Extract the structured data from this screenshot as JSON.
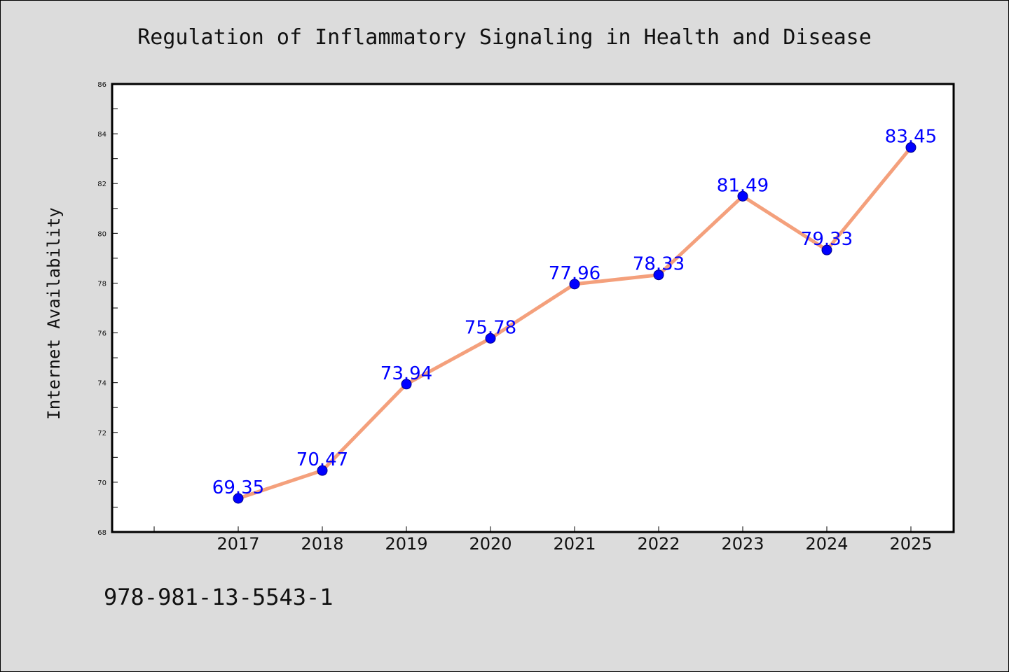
{
  "chart_data": {
    "type": "line",
    "title": "Regulation of Inflammatory Signaling in Health and Disease",
    "xlabel": "",
    "ylabel": "Internet Availability",
    "categories": [
      "2017",
      "2018",
      "2019",
      "2020",
      "2021",
      "2022",
      "2023",
      "2024",
      "2025"
    ],
    "values": [
      69.35,
      70.47,
      73.94,
      75.78,
      77.96,
      78.33,
      81.49,
      79.33,
      83.45
    ],
    "data_labels": [
      "69.35",
      "70.47",
      "73.94",
      "75.78",
      "77.96",
      "78.33",
      "81.49",
      "79.33",
      "83.45"
    ],
    "ylim": [
      68,
      86
    ],
    "yticks": [
      "68",
      "70",
      "72",
      "74",
      "76",
      "78",
      "80",
      "82",
      "84",
      "86"
    ],
    "grid": false,
    "legend": "none",
    "line_color": "#f4a07c",
    "marker_color": "#0000ff",
    "label_color": "#0000ff"
  },
  "footer_text": "978-981-13-5543-1"
}
